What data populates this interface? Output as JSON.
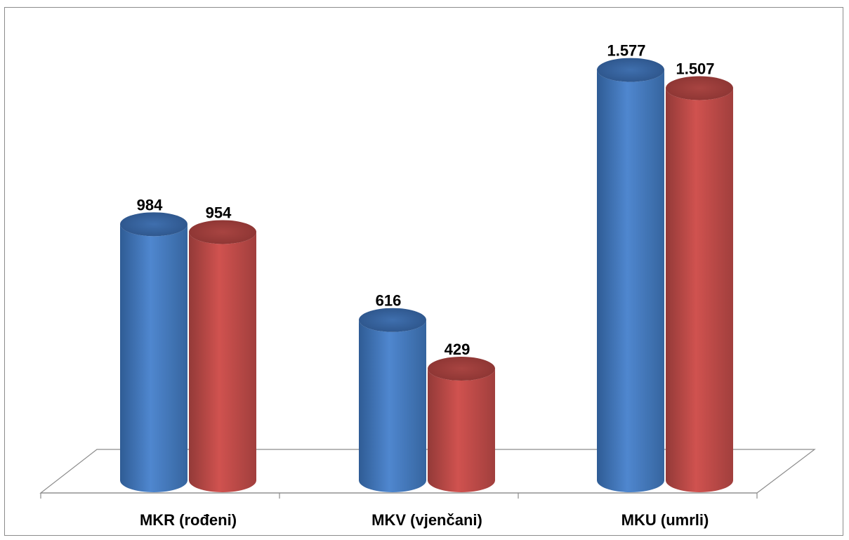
{
  "chart_data": {
    "type": "bar",
    "categories": [
      "MKR (rođeni)",
      "MKV (vjenčani)",
      "MKU (umrli)"
    ],
    "series": [
      {
        "values": [
          984,
          616,
          1577
        ],
        "labels": [
          "984",
          "616",
          "1.577"
        ],
        "color": "#4a7ebf"
      },
      {
        "values": [
          954,
          429,
          1507
        ],
        "labels": [
          "954",
          "429",
          "1.507"
        ],
        "color": "#c0504d"
      }
    ],
    "ylim": [
      0,
      1750
    ],
    "grid": false,
    "legend": "none"
  }
}
